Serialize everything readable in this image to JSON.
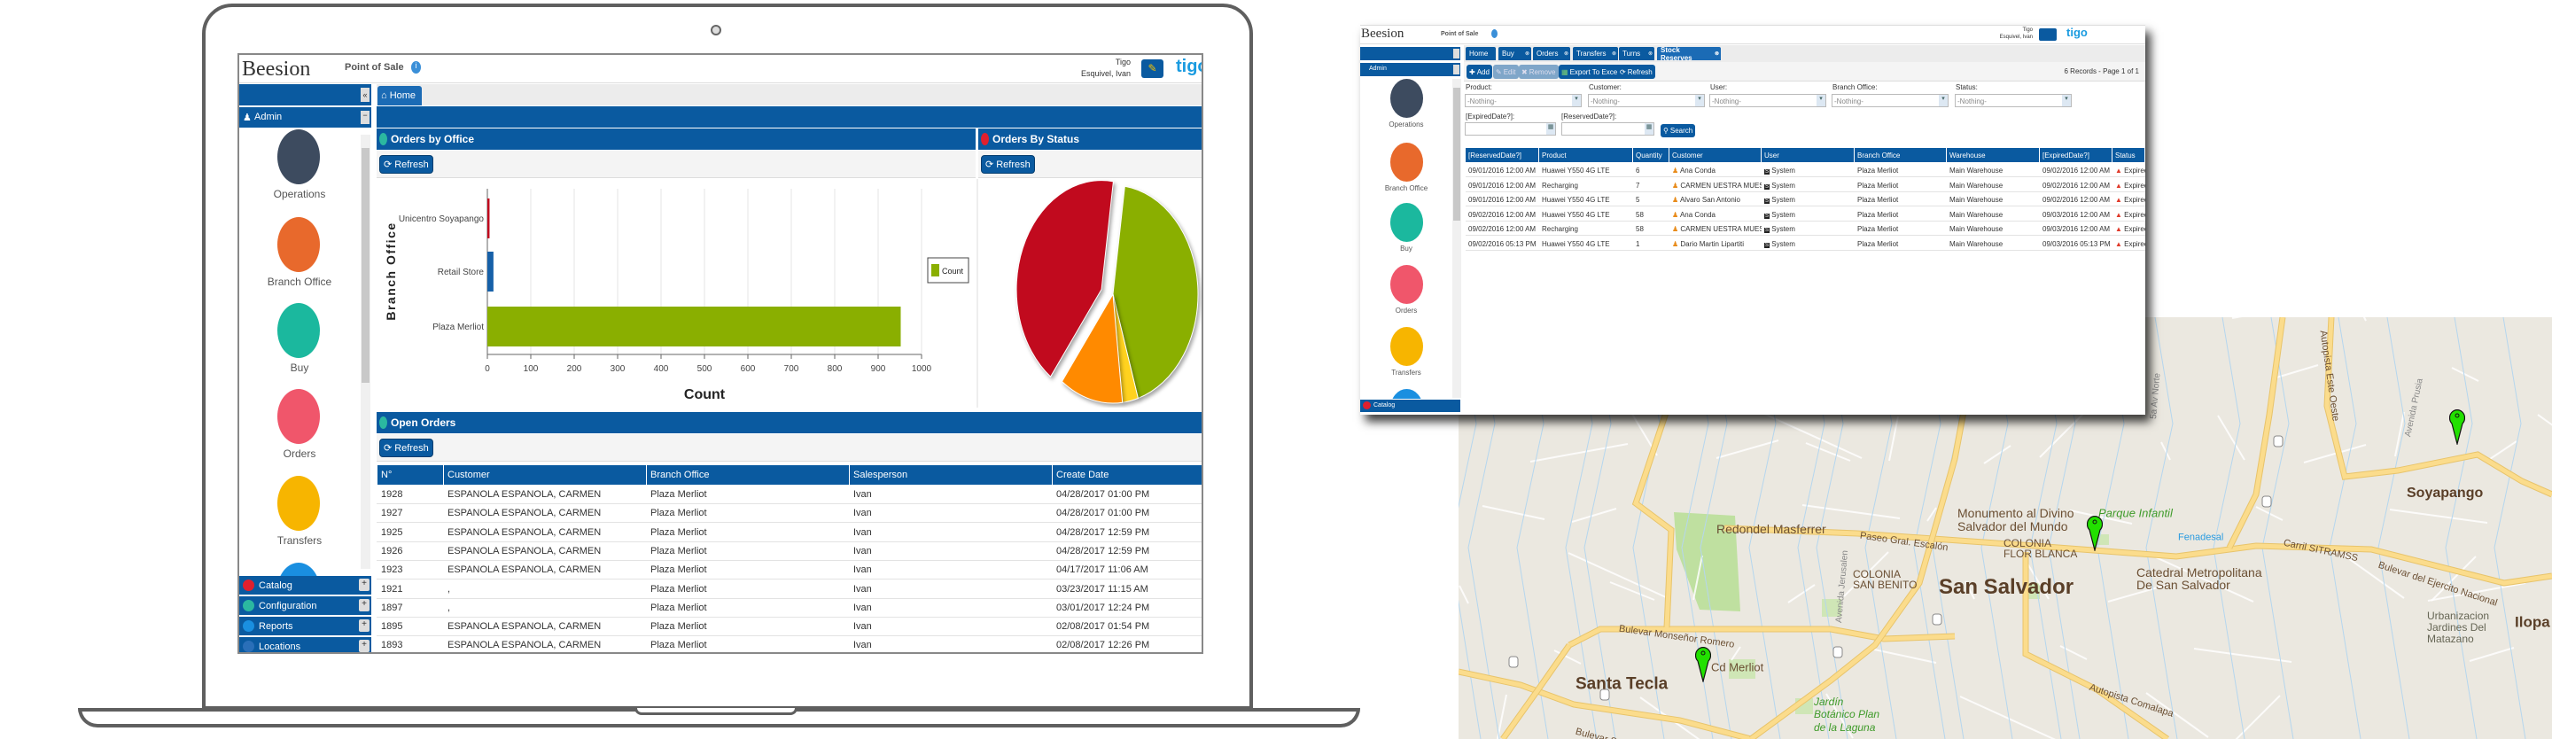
{
  "laptop_app": {
    "header": {
      "logo": "Beesion",
      "title": "Point of Sale",
      "company": "Tigo",
      "user": "Esquivel, Ivan",
      "brand_logo": "tigo"
    },
    "sidebar": {
      "section": "Admin",
      "modules": [
        {
          "label": "Operations",
          "color": "#3d4b5f"
        },
        {
          "label": "Branch Office",
          "color": "#e8692c"
        },
        {
          "label": "Buy",
          "color": "#1bb89e"
        },
        {
          "label": "Orders",
          "color": "#f0566b"
        },
        {
          "label": "Transfers",
          "color": "#f7b500"
        }
      ],
      "accordion": [
        {
          "label": "Catalog",
          "color": "#e0202e"
        },
        {
          "label": "Configuration",
          "color": "#2bb8a0"
        },
        {
          "label": "Reports",
          "color": "#1a8fe0"
        },
        {
          "label": "Locations",
          "color": "#2a6fb8"
        }
      ]
    },
    "tabs": [
      {
        "label": "Home"
      }
    ],
    "orders_by_office": {
      "title": "Orders by Office",
      "refresh": "Refresh"
    },
    "orders_by_status": {
      "title": "Orders By Status",
      "refresh": "Refresh"
    },
    "open_orders": {
      "title": "Open Orders",
      "refresh": "Refresh",
      "columns": [
        "N°",
        "Customer",
        "Branch Office",
        "Salesperson",
        "Create Date"
      ],
      "rows": [
        [
          "1928",
          "ESPANOLA ESPANOLA, CARMEN",
          "Plaza Merliot",
          "Ivan",
          "04/28/2017 01:00 PM"
        ],
        [
          "1927",
          "ESPANOLA ESPANOLA, CARMEN",
          "Plaza Merliot",
          "Ivan",
          "04/28/2017 01:00 PM"
        ],
        [
          "1925",
          "ESPANOLA ESPANOLA, CARMEN",
          "Plaza Merliot",
          "Ivan",
          "04/28/2017 12:59 PM"
        ],
        [
          "1926",
          "ESPANOLA ESPANOLA, CARMEN",
          "Plaza Merliot",
          "Ivan",
          "04/28/2017 12:59 PM"
        ],
        [
          "1923",
          "ESPANOLA ESPANOLA, CARMEN",
          "Plaza Merliot",
          "Ivan",
          "04/17/2017 11:06 AM"
        ],
        [
          "1921",
          ",",
          "Plaza Merliot",
          "Ivan",
          "03/23/2017 11:15 AM"
        ],
        [
          "1897",
          ",",
          "Plaza Merliot",
          "Ivan",
          "03/01/2017 12:24 PM"
        ],
        [
          "1895",
          "ESPANOLA ESPANOLA, CARMEN",
          "Plaza Merliot",
          "Ivan",
          "02/08/2017 01:54 PM"
        ],
        [
          "1893",
          "ESPANOLA ESPANOLA, CARMEN",
          "Plaza Merliot",
          "Ivan",
          "02/08/2017 12:26 PM"
        ]
      ]
    }
  },
  "chart_data": [
    {
      "type": "bar",
      "orientation": "horizontal",
      "categories": [
        "Unicentro Soyapango",
        "Retail Store",
        "Plaza Merliot"
      ],
      "values": [
        5,
        14,
        952
      ],
      "bar_colors": [
        "#c1071e",
        "#1660a8",
        "#8aaf00"
      ],
      "xlabel": "Count",
      "ylabel": "Branch Office",
      "xlim": [
        0,
        1000
      ],
      "xticks": [
        0,
        100,
        200,
        300,
        400,
        500,
        600,
        700,
        800,
        900,
        1000
      ],
      "grid": "vertical",
      "legend": {
        "entries": [
          "Count"
        ],
        "color": "#8aaf00",
        "placement": "right"
      }
    },
    {
      "type": "pie",
      "values": [
        43,
        3,
        12,
        42
      ],
      "colors": [
        "#8aaf00",
        "#ffd21f",
        "#ff8a00",
        "#c10a1e"
      ],
      "exploded": [
        false,
        false,
        false,
        true
      ]
    }
  ],
  "stock_app": {
    "header": {
      "logo": "Beesion",
      "title": "Point of Sale",
      "company": "Tigo",
      "user": "Esquivel, Ivan",
      "brand_logo": "tigo"
    },
    "sidebar": {
      "section": "Admin",
      "modules": [
        {
          "label": "Operations",
          "color": "#3d4b5f"
        },
        {
          "label": "Branch Office",
          "color": "#e8692c"
        },
        {
          "label": "Buy",
          "color": "#1bb89e"
        },
        {
          "label": "Orders",
          "color": "#f0566b"
        },
        {
          "label": "Transfers",
          "color": "#f7b500"
        }
      ],
      "accordion": [
        "Catalog"
      ]
    },
    "tabs": [
      "Home",
      "Buy",
      "Orders",
      "Transfers",
      "Turns",
      "Stock Reserves"
    ],
    "active_tab": "Stock Reserves",
    "toolbar": {
      "add": "Add",
      "edit": "Edit",
      "remove": "Remove",
      "export": "Export To Excel",
      "refresh": "Refresh",
      "records": "6 Records - Page 1 of 1"
    },
    "filters": {
      "labels": [
        "Product:",
        "Customer:",
        "User:",
        "Branch Office:",
        "Status:"
      ],
      "values": [
        "-Nothing-",
        "-Nothing-",
        "-Nothing-",
        "-Nothing-",
        "-Nothing-"
      ],
      "expired_label": "[ExpiredDate?]:",
      "reserved_label": "[ReservedDate?]:",
      "search": "Search"
    },
    "table": {
      "columns": [
        "[ReservedDate?]",
        "Product",
        "Quantity",
        "Customer",
        "User",
        "Branch Office",
        "Warehouse",
        "[ExpiredDate?]",
        "Status"
      ],
      "rows": [
        [
          "09/01/2016 12:00 AM",
          "Huawei Y550 4G LTE",
          "6",
          "Ana Conda",
          "System",
          "Plaza Merliot",
          "Main Warehouse",
          "09/02/2016 12:00 AM",
          "Expired"
        ],
        [
          "09/01/2016 12:00 AM",
          "Recharging",
          "7",
          "CARMEN UESTRA MUESTRA",
          "System",
          "Plaza Merliot",
          "Main Warehouse",
          "09/02/2016 12:00 AM",
          "Expired"
        ],
        [
          "09/01/2016 12:00 AM",
          "Huawei Y550 4G LTE",
          "5",
          "Alvaro San Antonio",
          "System",
          "Plaza Merliot",
          "Main Warehouse",
          "09/02/2016 12:00 AM",
          "Expired"
        ],
        [
          "09/02/2016 12:00 AM",
          "Huawei Y550 4G LTE",
          "58",
          "Ana Conda",
          "System",
          "Plaza Merliot",
          "Main Warehouse",
          "09/03/2016 12:00 AM",
          "Expired"
        ],
        [
          "09/02/2016 12:00 AM",
          "Recharging",
          "58",
          "CARMEN UESTRA MUESTRA",
          "System",
          "Plaza Merliot",
          "Main Warehouse",
          "09/03/2016 12:00 AM",
          "Expired"
        ],
        [
          "09/02/2016 05:13 PM",
          "Huawei Y550 4G LTE",
          "1",
          "Dario Martin Lipartiti",
          "System",
          "Plaza Merliot",
          "Main Warehouse",
          "09/03/2016 05:13 PM",
          "Expired"
        ]
      ]
    }
  },
  "map": {
    "labels": [
      {
        "text": "Redondel Masferrer",
        "kind": "poi"
      },
      {
        "text": "Paseo Gral. Escalón",
        "kind": "road"
      },
      {
        "text": "Monumento al Divino",
        "kind": "poi"
      },
      {
        "text": "Salvador del Mundo",
        "kind": "poi"
      },
      {
        "text": "Parque Infantil",
        "kind": "park"
      },
      {
        "text": "COLONIA",
        "kind": "area"
      },
      {
        "text": "FLOR BLANCA",
        "kind": "area"
      },
      {
        "text": "Fenadesal",
        "kind": "transit"
      },
      {
        "text": "Carril SITRAMSS",
        "kind": "road"
      },
      {
        "text": "Bulevar del Ejercito Nacional",
        "kind": "road"
      },
      {
        "text": "Soyapango",
        "kind": "city"
      },
      {
        "text": "Catedral Metropolitana",
        "kind": "poi"
      },
      {
        "text": "De San Salvador",
        "kind": "poi"
      },
      {
        "text": "COLONIA",
        "kind": "area"
      },
      {
        "text": "SAN BENITO",
        "kind": "area"
      },
      {
        "text": "San Salvador",
        "kind": "capital"
      },
      {
        "text": "Urbanizacion",
        "kind": "area2"
      },
      {
        "text": "Jardines Del",
        "kind": "area2"
      },
      {
        "text": "Matazano",
        "kind": "area2"
      },
      {
        "text": "Ilopa",
        "kind": "city"
      },
      {
        "text": "Bulevar Monseñor Romero",
        "kind": "road"
      },
      {
        "text": "Cd Merliot",
        "kind": "poi"
      },
      {
        "text": "Santa Tecla",
        "kind": "city"
      },
      {
        "text": "Jardín",
        "kind": "park"
      },
      {
        "text": "Botánico Plan",
        "kind": "park"
      },
      {
        "text": "de la Laguna",
        "kind": "park"
      },
      {
        "text": "Autopista Este Oeste",
        "kind": "road"
      },
      {
        "text": "Avenida Prusia",
        "kind": "road-gray"
      },
      {
        "text": "Avenida Bernal",
        "kind": "road-gray"
      },
      {
        "text": "5a Av Norte",
        "kind": "road-gray"
      },
      {
        "text": "Avenida Jerusalen",
        "kind": "road-gray"
      },
      {
        "text": "Autopista Comalapa",
        "kind": "road"
      },
      {
        "text": "Bulevar Sur",
        "kind": "road"
      }
    ],
    "marker_color": "#22e000",
    "markers": [
      "San Salvador office",
      "Soyapango office",
      "Merliot office"
    ]
  }
}
